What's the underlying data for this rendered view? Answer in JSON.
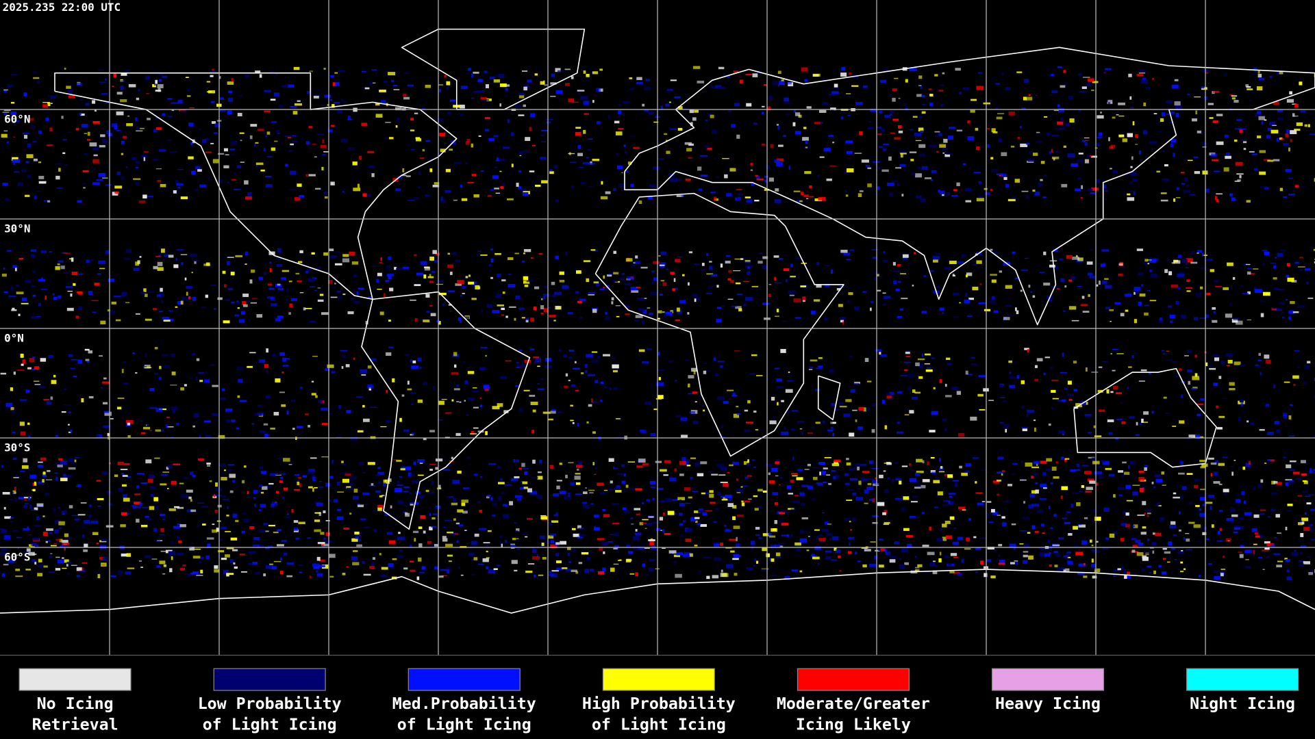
{
  "header": {
    "timestamp": "2025.235 22:00 UTC"
  },
  "map": {
    "lat_labels": [
      "60°N",
      "30°N",
      "0°N",
      "30°S",
      "60°S"
    ]
  },
  "legend": {
    "items": [
      {
        "color": "#e6e6e6",
        "lines": [
          "No Icing",
          "Retrieval"
        ]
      },
      {
        "color": "#000070",
        "lines": [
          "Low Probability",
          "of Light Icing"
        ]
      },
      {
        "color": "#0010ff",
        "lines": [
          "Med.Probability",
          "of Light Icing"
        ]
      },
      {
        "color": "#ffff00",
        "lines": [
          "High Probability",
          "of Light Icing"
        ]
      },
      {
        "color": "#ff0000",
        "lines": [
          "Moderate/Greater",
          "Icing Likely"
        ]
      },
      {
        "color": "#e6a0e6",
        "lines": [
          "Heavy Icing"
        ]
      },
      {
        "color": "#00ffff",
        "lines": [
          "Night Icing"
        ]
      }
    ]
  }
}
